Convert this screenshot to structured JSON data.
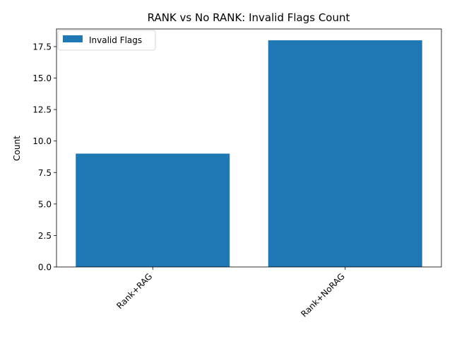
{
  "chart_data": {
    "type": "bar",
    "title": "RANK vs No RANK: Invalid Flags Count",
    "xlabel": "",
    "ylabel": "Count",
    "categories": [
      "Rank+RAG",
      "Rank+NoRAG"
    ],
    "series": [
      {
        "name": "Invalid Flags",
        "values": [
          9,
          18
        ],
        "color": "#1f77b4"
      }
    ],
    "ylim": [
      0,
      18.9
    ],
    "yticks": [
      0.0,
      2.5,
      5.0,
      7.5,
      10.0,
      12.5,
      15.0,
      17.5
    ],
    "ytick_labels": [
      "0.0",
      "2.5",
      "5.0",
      "7.5",
      "10.0",
      "12.5",
      "15.0",
      "17.5"
    ],
    "legend_position": "top-left",
    "grid": false
  }
}
